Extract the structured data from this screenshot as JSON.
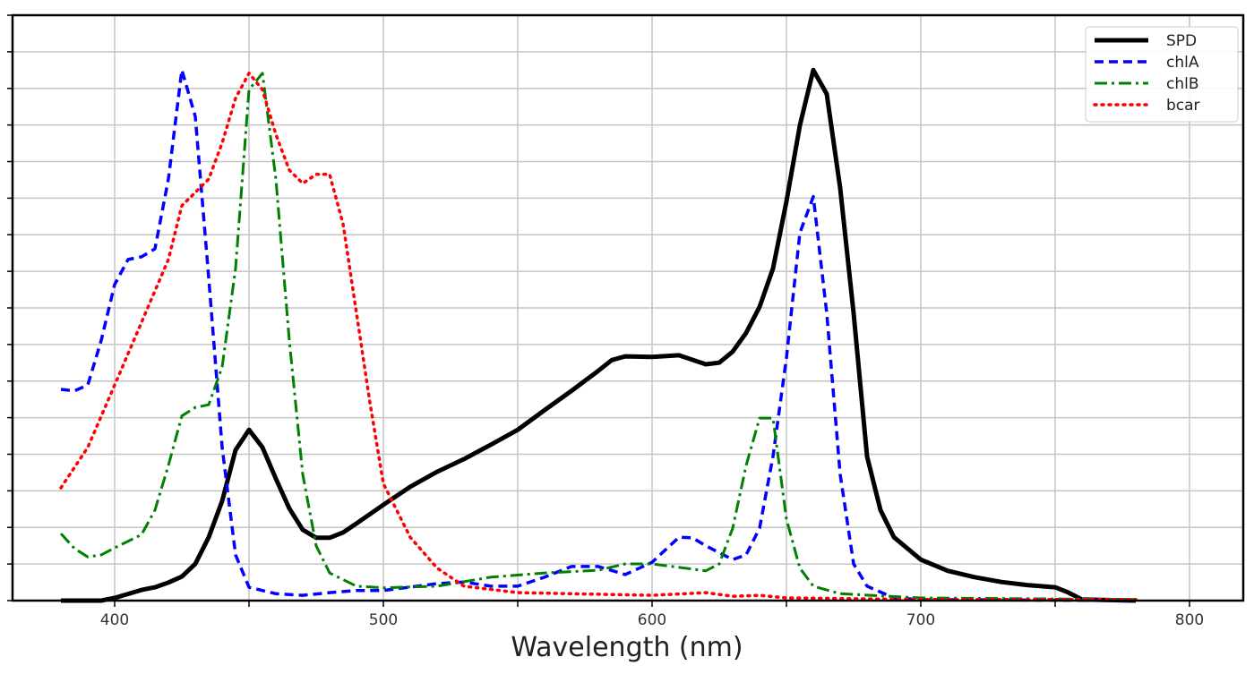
{
  "chart_data": {
    "type": "line",
    "title": "",
    "xlabel": "Wavelength (nm)",
    "ylabel": "",
    "xlim": [
      362,
      820
    ],
    "ylim": [
      0,
      1.1
    ],
    "x_ticks": [
      400,
      500,
      600,
      700,
      800
    ],
    "x_tick_labels": [
      "400",
      "500",
      "600",
      "700",
      "800"
    ],
    "x_minor_ticks": [
      450,
      550,
      650,
      750
    ],
    "y_tick_count": 16,
    "y_tick_labels_shown": false,
    "grid": true,
    "legend_position": "top-right",
    "series": [
      {
        "name": "SPD",
        "color": "#000000",
        "style": "solid",
        "x": [
          380,
          395,
          400,
          410,
          415,
          420,
          425,
          430,
          435,
          440,
          445,
          450,
          455,
          460,
          465,
          470,
          475,
          480,
          485,
          490,
          500,
          510,
          520,
          530,
          540,
          550,
          560,
          570,
          580,
          585,
          590,
          600,
          610,
          620,
          625,
          630,
          635,
          640,
          645,
          650,
          655,
          660,
          665,
          670,
          675,
          680,
          685,
          690,
          700,
          710,
          720,
          730,
          740,
          750,
          755,
          760,
          780
        ],
        "y": [
          0,
          0,
          0.005,
          0.02,
          0.025,
          0.034,
          0.045,
          0.069,
          0.119,
          0.187,
          0.283,
          0.321,
          0.288,
          0.229,
          0.173,
          0.133,
          0.118,
          0.118,
          0.128,
          0.145,
          0.18,
          0.214,
          0.242,
          0.266,
          0.293,
          0.321,
          0.358,
          0.394,
          0.432,
          0.452,
          0.459,
          0.458,
          0.461,
          0.444,
          0.447,
          0.468,
          0.503,
          0.552,
          0.624,
          0.75,
          0.893,
          0.997,
          0.952,
          0.775,
          0.54,
          0.271,
          0.17,
          0.119,
          0.077,
          0.056,
          0.044,
          0.035,
          0.029,
          0.025,
          0.015,
          0.002,
          0
        ]
      },
      {
        "name": "chlA",
        "color": "#0000ff",
        "style": "dashed",
        "x": [
          380,
          385,
          390,
          395,
          400,
          405,
          410,
          415,
          420,
          425,
          430,
          435,
          440,
          445,
          450,
          460,
          470,
          480,
          490,
          500,
          520,
          530,
          540,
          550,
          560,
          570,
          580,
          590,
          600,
          610,
          615,
          620,
          630,
          635,
          640,
          645,
          650,
          655,
          660,
          665,
          670,
          675,
          680,
          690,
          700,
          780
        ],
        "y": [
          0.397,
          0.394,
          0.405,
          0.489,
          0.594,
          0.641,
          0.646,
          0.661,
          0.792,
          0.997,
          0.91,
          0.607,
          0.288,
          0.086,
          0.025,
          0.013,
          0.01,
          0.015,
          0.019,
          0.019,
          0.032,
          0.035,
          0.027,
          0.027,
          0.044,
          0.064,
          0.064,
          0.049,
          0.072,
          0.119,
          0.118,
          0.103,
          0.077,
          0.086,
          0.136,
          0.271,
          0.456,
          0.691,
          0.759,
          0.54,
          0.237,
          0.069,
          0.027,
          0.005,
          0.002,
          0
        ]
      },
      {
        "name": "chlB",
        "color": "#008000",
        "style": "dashdot",
        "x": [
          380,
          385,
          390,
          395,
          400,
          410,
          415,
          420,
          425,
          430,
          435,
          440,
          445,
          450,
          455,
          460,
          465,
          470,
          475,
          480,
          490,
          500,
          520,
          540,
          560,
          580,
          590,
          600,
          620,
          625,
          630,
          635,
          640,
          645,
          650,
          655,
          660,
          670,
          700,
          780
        ],
        "y": [
          0.126,
          0.098,
          0.082,
          0.086,
          0.099,
          0.124,
          0.17,
          0.254,
          0.347,
          0.363,
          0.368,
          0.439,
          0.624,
          0.96,
          0.991,
          0.792,
          0.489,
          0.237,
          0.103,
          0.052,
          0.027,
          0.024,
          0.027,
          0.044,
          0.052,
          0.057,
          0.069,
          0.069,
          0.056,
          0.069,
          0.136,
          0.254,
          0.343,
          0.343,
          0.153,
          0.061,
          0.027,
          0.013,
          0.005,
          0.002
        ]
      },
      {
        "name": "bcar",
        "color": "#ff0000",
        "style": "dotted",
        "x": [
          380,
          390,
          400,
          410,
          420,
          425,
          430,
          435,
          440,
          445,
          450,
          455,
          460,
          465,
          470,
          475,
          480,
          485,
          490,
          495,
          500,
          510,
          520,
          530,
          550,
          600,
          620,
          630,
          640,
          650,
          700,
          780
        ],
        "y": [
          0.212,
          0.288,
          0.405,
          0.523,
          0.641,
          0.742,
          0.767,
          0.792,
          0.86,
          0.944,
          0.991,
          0.96,
          0.876,
          0.809,
          0.784,
          0.801,
          0.801,
          0.708,
          0.54,
          0.372,
          0.22,
          0.119,
          0.061,
          0.027,
          0.015,
          0.01,
          0.015,
          0.008,
          0.01,
          0.005,
          0.002,
          0.002
        ]
      }
    ]
  }
}
